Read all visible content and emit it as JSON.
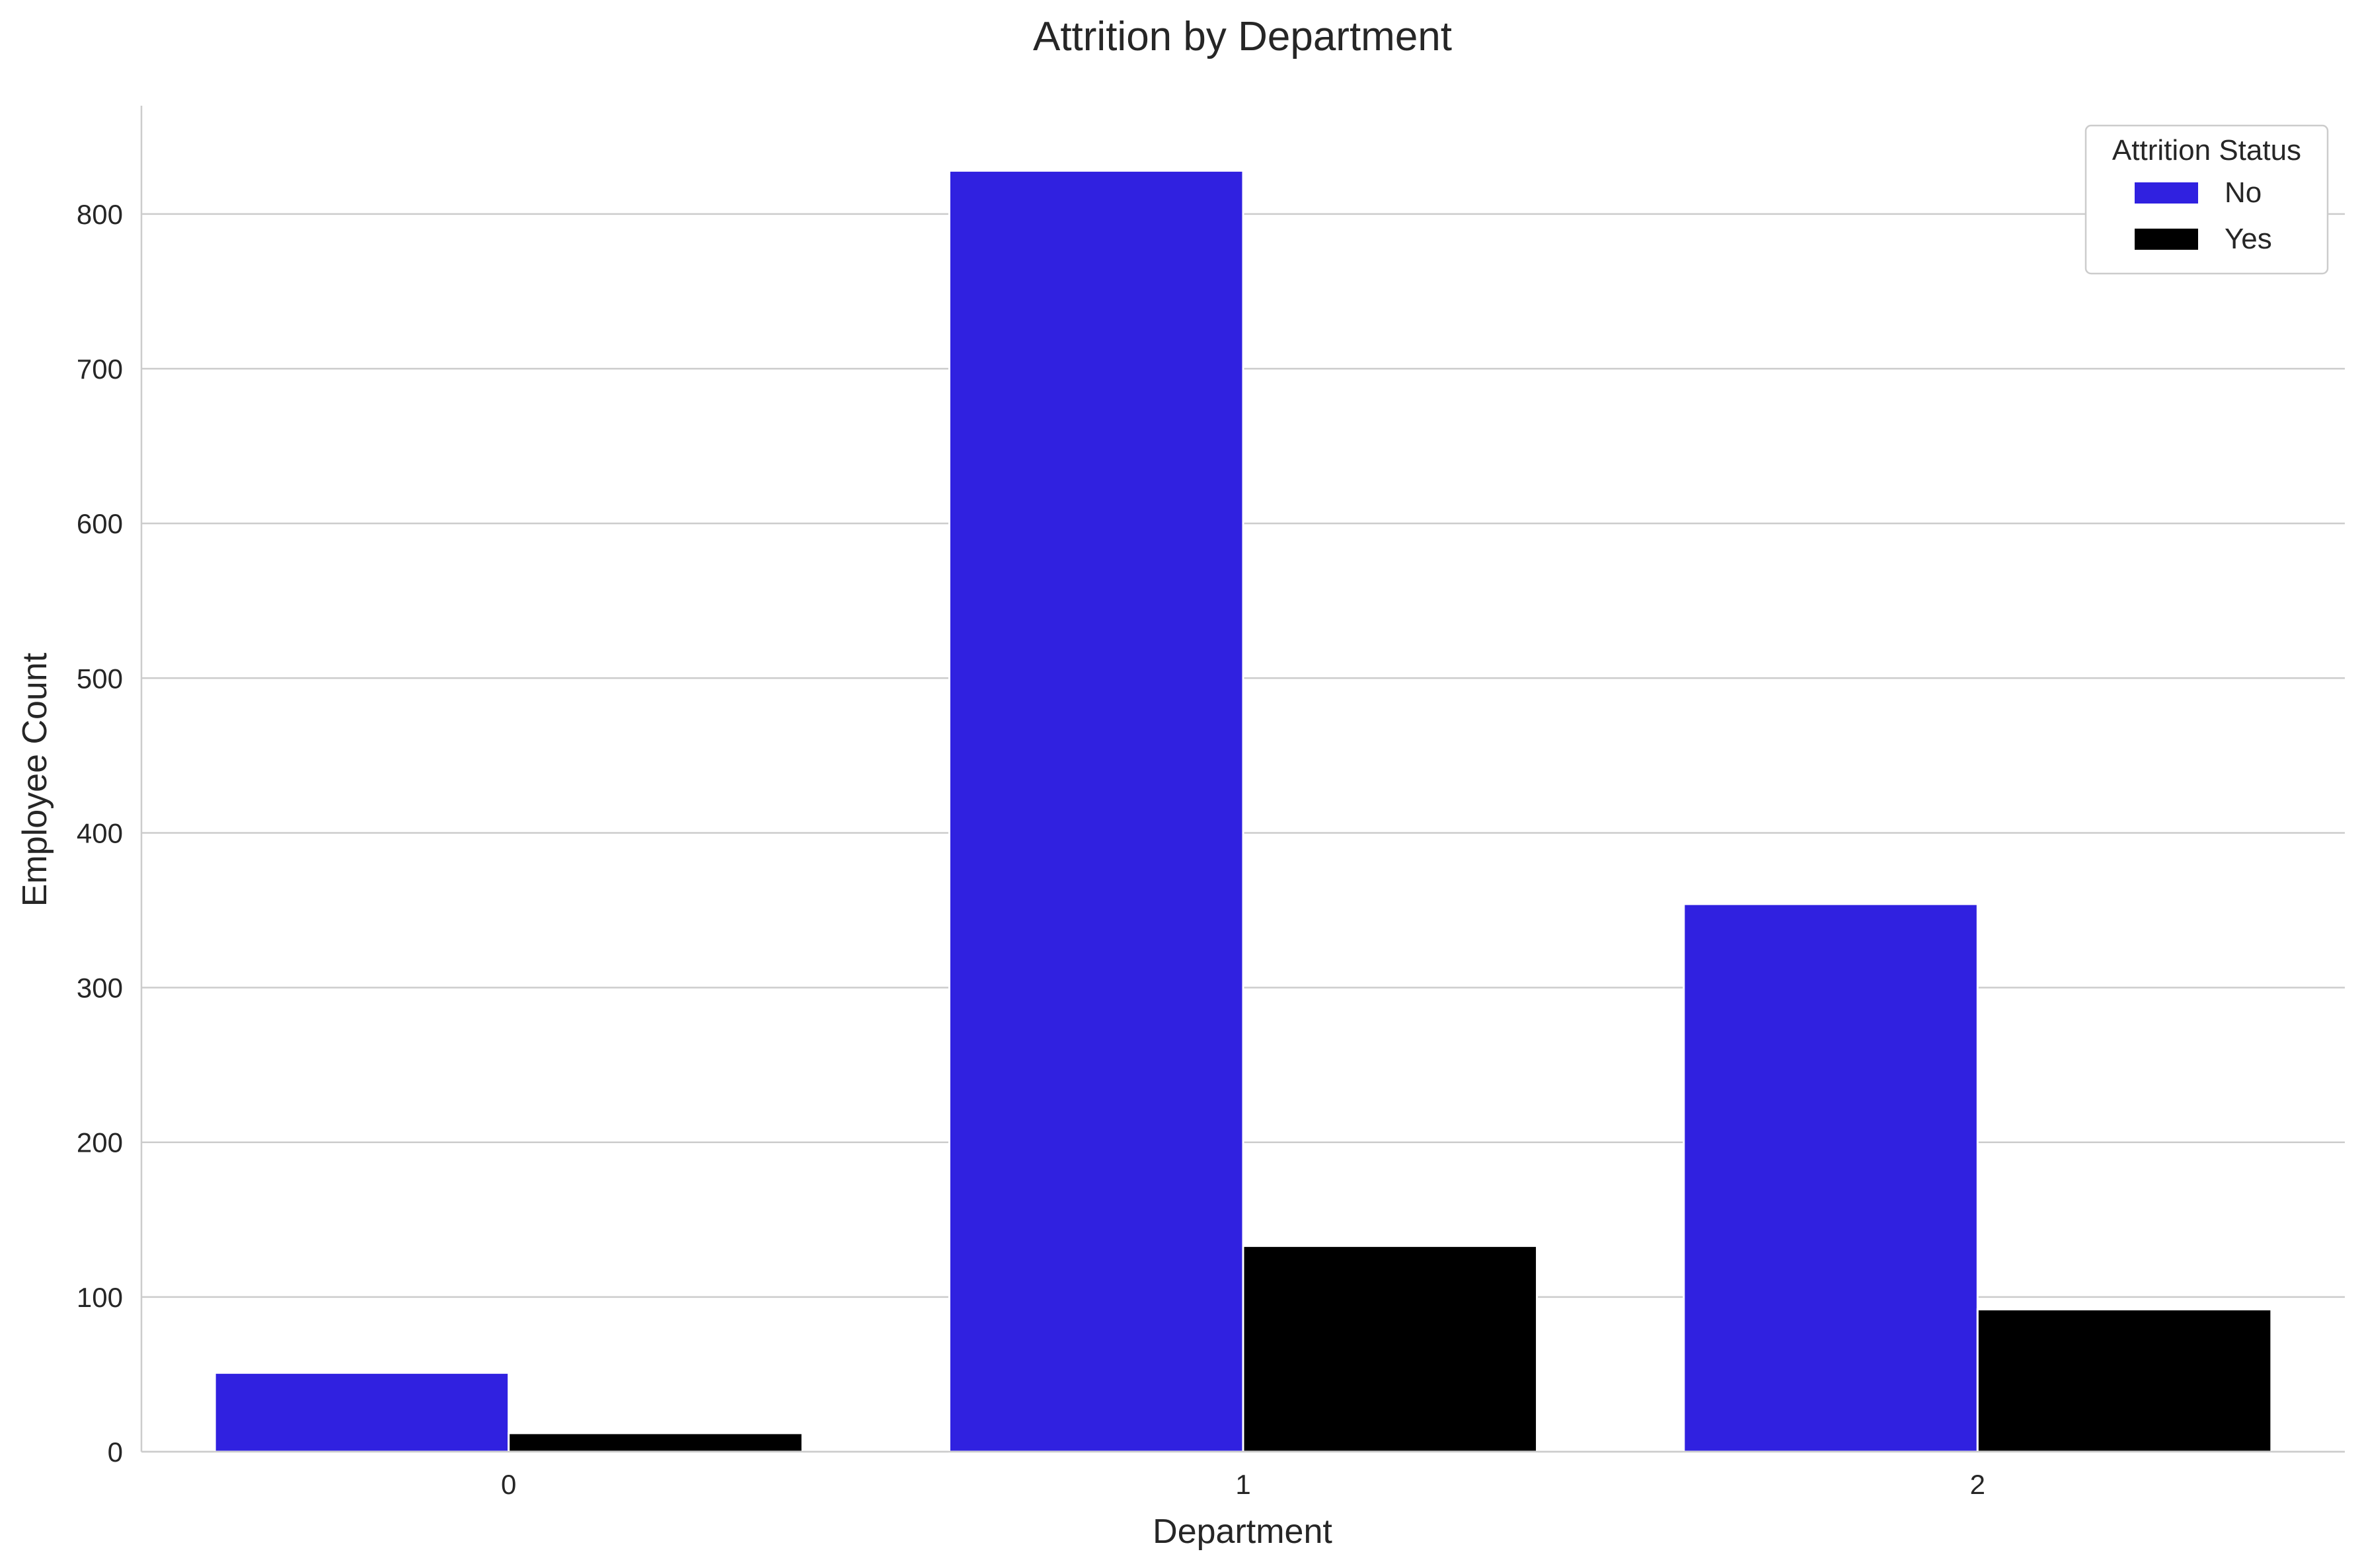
{
  "chart_data": {
    "type": "bar",
    "title": "Attrition by Department",
    "xlabel": "Department",
    "ylabel": "Employee Count",
    "categories": [
      "0",
      "1",
      "2"
    ],
    "series": [
      {
        "name": "No",
        "color": "#3021e0",
        "values": [
          51,
          828,
          354
        ]
      },
      {
        "name": "Yes",
        "color": "#000000",
        "values": [
          12,
          133,
          92
        ]
      }
    ],
    "ylim": [
      0,
      870
    ],
    "yticks": [
      0,
      100,
      200,
      300,
      400,
      500,
      600,
      700,
      800
    ],
    "grid": "horizontal",
    "legend": {
      "title": "Attrition Status",
      "placement": "top-right"
    }
  }
}
